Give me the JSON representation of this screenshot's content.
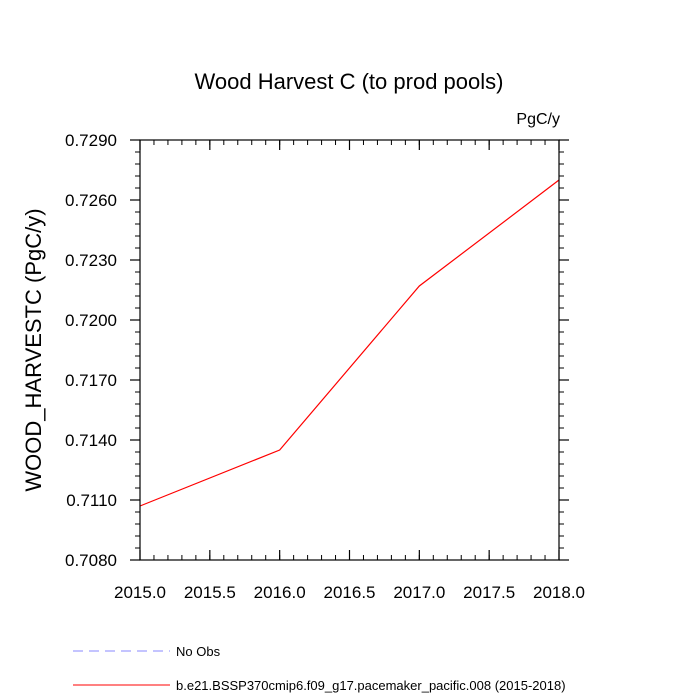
{
  "chart_data": {
    "type": "line",
    "title": "Wood Harvest C (to prod pools)",
    "units": "PgC/y",
    "ylabel": "WOOD_HARVESTC  (PgC/y)",
    "xlabel": "",
    "xlim": [
      2015.0,
      2018.0
    ],
    "ylim": [
      0.708,
      0.729
    ],
    "x_ticks": [
      2015.0,
      2015.5,
      2016.0,
      2016.5,
      2017.0,
      2017.5,
      2018.0
    ],
    "x_tick_labels": [
      "2015.0",
      "2015.5",
      "2016.0",
      "2016.5",
      "2017.0",
      "2017.5",
      "2018.0"
    ],
    "x_minor_step": 0.1,
    "y_ticks": [
      0.708,
      0.711,
      0.714,
      0.717,
      0.72,
      0.723,
      0.726,
      0.729
    ],
    "y_tick_labels": [
      "0.7080",
      "0.7110",
      "0.7140",
      "0.7170",
      "0.7200",
      "0.7230",
      "0.7260",
      "0.7290"
    ],
    "y_minor_step": 0.0006,
    "grid": false,
    "legend_position": "bottom",
    "series": [
      {
        "name": "b.e21.BSSP370cmip6.f09_g17.pacemaker_pacific.008 (2015-2018)",
        "color": "#ff0000",
        "dash": "solid",
        "x": [
          2015.0,
          2016.0,
          2017.0,
          2018.0
        ],
        "y": [
          0.7107,
          0.7135,
          0.7217,
          0.727
        ]
      }
    ],
    "legend": [
      {
        "label": "No Obs",
        "color": "#8888ff",
        "dash": "dashed"
      },
      {
        "label": "b.e21.BSSP370cmip6.f09_g17.pacemaker_pacific.008 (2015-2018)",
        "color": "#ff0000",
        "dash": "solid"
      }
    ]
  }
}
